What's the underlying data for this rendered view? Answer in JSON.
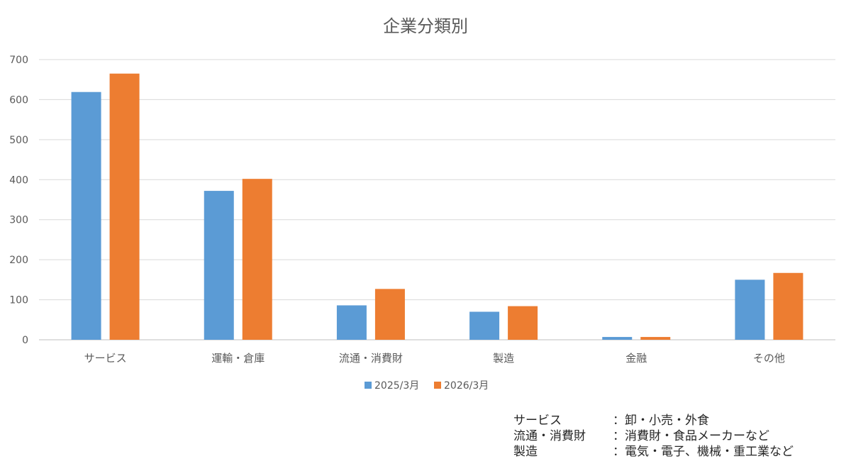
{
  "chart_data": {
    "type": "bar",
    "title": "企業分類別",
    "categories": [
      "サービス",
      "運輸・倉庫",
      "流通・消費財",
      "製造",
      "金融",
      "その他"
    ],
    "series": [
      {
        "name": "2025/3月",
        "color": "#5B9BD5",
        "values": [
          619,
          372,
          86,
          70,
          7,
          150
        ]
      },
      {
        "name": "2026/3月",
        "color": "#ED7D31",
        "values": [
          665,
          402,
          127,
          84,
          7,
          167
        ]
      }
    ],
    "ylim": [
      0,
      700
    ],
    "yticks": [
      0,
      100,
      200,
      300,
      400,
      500,
      600,
      700
    ],
    "grid": true,
    "legend": "bottom"
  },
  "notes": [
    {
      "term": "サービス",
      "desc": "：卸・小売・外食"
    },
    {
      "term": "流通・消費財",
      "desc": "：消費財・食品メーカーなど"
    },
    {
      "term": "製造",
      "desc": "：電気・電子、機械・重工業など"
    }
  ]
}
